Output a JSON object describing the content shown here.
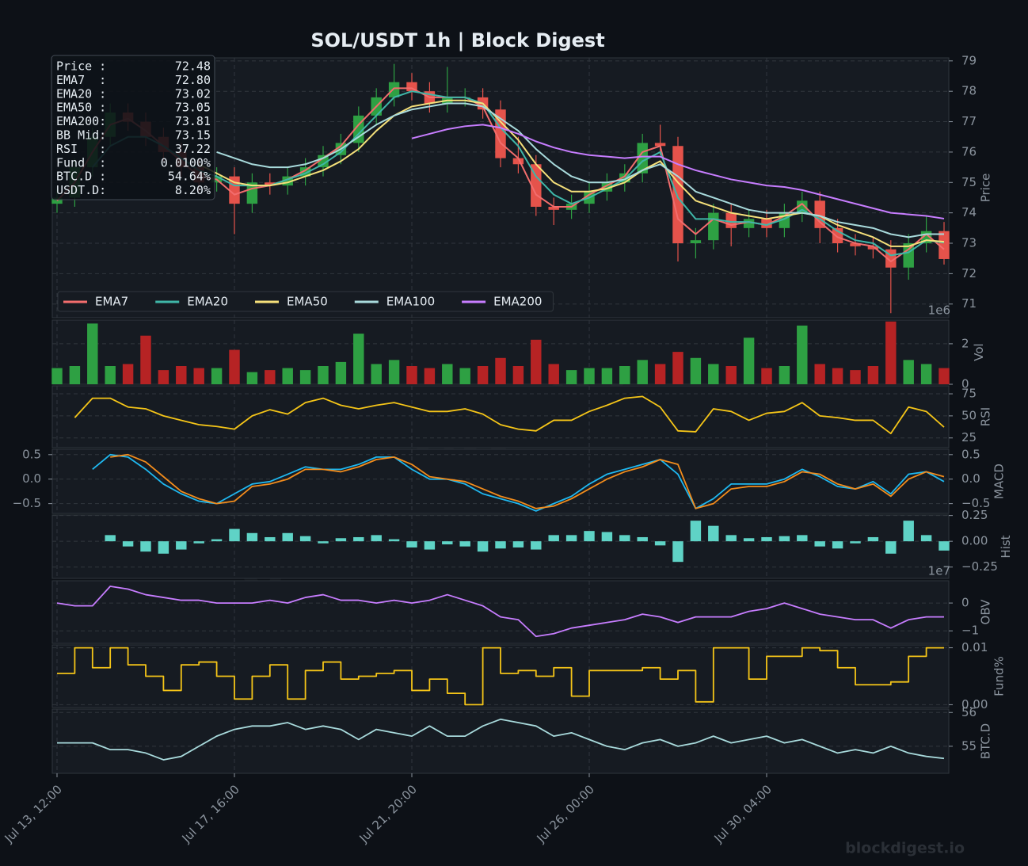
{
  "title": "SOL/USDT  1h  |  Block Digest",
  "watermark": "blockdigest.io",
  "footer": "blockdigest.io",
  "info_box": {
    "rows": [
      [
        "Price :",
        "72.48"
      ],
      [
        "EMA7  :",
        "72.80"
      ],
      [
        "EMA20 :",
        "73.02"
      ],
      [
        "EMA50 :",
        "73.05"
      ],
      [
        "EMA200:",
        "73.81"
      ],
      [
        "BB Mid:",
        "73.15"
      ],
      [
        "RSI   :",
        "37.22"
      ],
      [
        "Fund  :",
        "0.0100%"
      ],
      [
        "BTC.D :",
        "54.64%"
      ],
      [
        "USDT.D:",
        "8.20%"
      ]
    ]
  },
  "chart_data": [
    {
      "type": "candlestick",
      "ylabel": "Price",
      "ylim": [
        70.55,
        79.1
      ],
      "yticks": [
        71,
        72,
        73,
        74,
        75,
        76,
        77,
        78,
        79
      ],
      "grid": true,
      "legend": "lower left",
      "up_color": "#2ea043",
      "down_color": "#e5534b",
      "open": [
        74.3,
        74.5,
        75.5,
        76.5,
        77.3,
        77.0,
        76.5,
        76.0,
        75.5,
        75.0,
        75.2,
        74.3,
        75.0,
        74.9,
        75.2,
        75.5,
        75.9,
        76.3,
        77.2,
        77.8,
        78.3,
        78.0,
        77.6,
        77.8,
        77.8,
        77.4,
        75.8,
        75.6,
        74.2,
        74.1,
        74.3,
        74.7,
        75.0,
        75.3,
        76.3,
        76.2,
        73.0,
        73.1,
        74.0,
        73.5,
        73.8,
        73.5,
        74.0,
        74.4,
        73.5,
        73.0,
        72.9,
        72.8,
        72.2,
        73.0,
        73.4
      ],
      "high": [
        74.8,
        75.8,
        76.8,
        77.6,
        77.6,
        77.3,
        76.8,
        76.3,
        75.8,
        75.5,
        75.5,
        75.3,
        75.3,
        75.5,
        75.8,
        76.2,
        76.6,
        77.5,
        78.1,
        78.9,
        78.6,
        78.3,
        78.8,
        78.1,
        78.1,
        77.7,
        76.5,
        75.9,
        74.5,
        74.6,
        75.0,
        75.3,
        75.6,
        76.6,
        76.9,
        76.5,
        73.5,
        74.3,
        74.3,
        74.1,
        74.1,
        74.3,
        74.7,
        74.7,
        73.8,
        73.3,
        73.2,
        73.1,
        73.3,
        73.9,
        73.7
      ],
      "low": [
        74.0,
        74.2,
        75.2,
        76.2,
        76.7,
        76.2,
        75.7,
        75.2,
        74.7,
        74.7,
        73.3,
        74.0,
        74.6,
        74.6,
        74.9,
        75.2,
        75.6,
        76.0,
        76.9,
        77.5,
        77.7,
        77.3,
        77.3,
        77.5,
        77.1,
        75.5,
        75.3,
        73.9,
        73.6,
        73.8,
        74.0,
        74.4,
        74.7,
        75.0,
        75.9,
        72.4,
        72.5,
        72.8,
        72.9,
        73.2,
        73.2,
        73.2,
        73.7,
        73.0,
        72.7,
        72.6,
        72.5,
        70.7,
        71.8,
        72.7,
        72.3
      ],
      "close": [
        74.5,
        75.5,
        76.5,
        77.3,
        77.0,
        76.5,
        76.0,
        75.5,
        75.0,
        75.2,
        74.3,
        75.0,
        74.9,
        75.2,
        75.5,
        75.9,
        76.3,
        77.2,
        77.8,
        78.3,
        78.0,
        77.6,
        77.8,
        77.8,
        77.4,
        75.8,
        75.6,
        74.2,
        74.1,
        74.3,
        74.7,
        75.0,
        75.3,
        76.3,
        76.2,
        73.0,
        73.1,
        74.0,
        73.5,
        73.8,
        73.5,
        74.0,
        74.4,
        73.5,
        73.0,
        72.9,
        72.8,
        72.2,
        73.0,
        73.4,
        72.48
      ],
      "series": [
        {
          "name": "EMA7",
          "color": "#f26d6d",
          "values": [
            74.4,
            75.0,
            76.0,
            76.9,
            77.1,
            76.7,
            76.2,
            75.7,
            75.2,
            75.1,
            74.6,
            74.8,
            74.9,
            75.1,
            75.4,
            75.8,
            76.2,
            76.9,
            77.5,
            78.1,
            78.1,
            77.8,
            77.8,
            77.8,
            77.5,
            76.3,
            75.8,
            74.6,
            74.2,
            74.2,
            74.6,
            74.9,
            75.2,
            76.0,
            76.2,
            73.8,
            73.3,
            73.8,
            73.6,
            73.7,
            73.6,
            73.9,
            74.3,
            73.7,
            73.2,
            73.0,
            72.9,
            72.4,
            72.8,
            73.3,
            72.8
          ]
        },
        {
          "name": "EMA20",
          "color": "#3fb6a8",
          "values": [
            null,
            null,
            75.5,
            76.2,
            76.5,
            76.5,
            76.2,
            75.8,
            75.4,
            75.2,
            74.9,
            74.9,
            74.9,
            75.1,
            75.3,
            75.6,
            76.0,
            76.6,
            77.2,
            77.8,
            78.0,
            77.9,
            77.8,
            77.8,
            77.6,
            76.8,
            76.2,
            75.2,
            74.6,
            74.3,
            74.5,
            74.8,
            75.1,
            75.7,
            76.0,
            74.5,
            73.8,
            73.8,
            73.7,
            73.7,
            73.6,
            73.8,
            74.1,
            73.8,
            73.4,
            73.1,
            73.0,
            72.6,
            72.7,
            73.1,
            73.02
          ]
        },
        {
          "name": "EMA50",
          "color": "#f5e07a",
          "values": [
            null,
            null,
            null,
            null,
            null,
            null,
            null,
            null,
            75.6,
            75.3,
            75.0,
            74.9,
            74.9,
            75.0,
            75.2,
            75.4,
            75.7,
            76.1,
            76.7,
            77.2,
            77.5,
            77.6,
            77.7,
            77.7,
            77.6,
            77.0,
            76.4,
            75.6,
            75.0,
            74.7,
            74.7,
            74.8,
            75.0,
            75.4,
            75.7,
            75.0,
            74.4,
            74.2,
            74.0,
            73.9,
            73.8,
            73.9,
            74.0,
            73.9,
            73.6,
            73.4,
            73.2,
            72.9,
            72.9,
            73.1,
            73.05
          ]
        },
        {
          "name": "EMA100",
          "color": "#a8dadc",
          "values": [
            null,
            null,
            null,
            null,
            null,
            null,
            null,
            null,
            null,
            76.0,
            75.8,
            75.6,
            75.5,
            75.5,
            75.6,
            75.8,
            76.1,
            76.5,
            76.9,
            77.2,
            77.4,
            77.5,
            77.6,
            77.6,
            77.5,
            77.1,
            76.7,
            76.1,
            75.6,
            75.2,
            75.0,
            75.0,
            75.1,
            75.4,
            75.6,
            75.2,
            74.7,
            74.5,
            74.3,
            74.1,
            74.0,
            74.0,
            74.0,
            73.9,
            73.7,
            73.6,
            73.5,
            73.3,
            73.2,
            73.3,
            73.3
          ]
        },
        {
          "name": "EMA200",
          "color": "#c77dff",
          "values": [
            null,
            null,
            null,
            null,
            null,
            null,
            null,
            null,
            null,
            null,
            null,
            null,
            null,
            null,
            null,
            null,
            null,
            null,
            null,
            null,
            76.45,
            76.6,
            76.75,
            76.85,
            76.9,
            76.8,
            76.6,
            76.35,
            76.15,
            76.0,
            75.9,
            75.85,
            75.8,
            75.85,
            75.85,
            75.6,
            75.4,
            75.25,
            75.1,
            75.0,
            74.9,
            74.85,
            74.75,
            74.6,
            74.45,
            74.3,
            74.15,
            74.0,
            73.95,
            73.9,
            73.81
          ]
        }
      ]
    },
    {
      "type": "bar",
      "ylabel": "Vol",
      "offset_label": "1e6",
      "ylim": [
        0,
        3.17
      ],
      "yticks": [
        0,
        2
      ],
      "grid": true,
      "up_color": "#2ea043",
      "down_color": "#b62324",
      "values": [
        0.8,
        0.9,
        3.0,
        0.9,
        1.0,
        2.4,
        0.7,
        0.9,
        0.8,
        0.8,
        1.7,
        0.6,
        0.7,
        0.8,
        0.7,
        0.9,
        1.1,
        2.5,
        1.0,
        1.2,
        0.9,
        0.8,
        1.0,
        0.8,
        0.9,
        1.3,
        0.9,
        2.2,
        1.0,
        0.7,
        0.8,
        0.8,
        0.9,
        1.2,
        1.0,
        1.6,
        1.3,
        1.0,
        0.9,
        2.3,
        0.8,
        0.9,
        2.9,
        1.0,
        0.8,
        0.7,
        0.9,
        3.1,
        1.2,
        1.0,
        0.8
      ]
    },
    {
      "type": "line",
      "ylabel": "RSI",
      "ylim": [
        14,
        84
      ],
      "yticks": [
        25,
        50,
        75
      ],
      "grid": true,
      "series": [
        {
          "color": "#f5c518",
          "values": [
            null,
            48,
            70,
            70,
            60,
            58,
            50,
            45,
            40,
            38,
            35,
            50,
            57,
            52,
            65,
            70,
            62,
            58,
            62,
            65,
            60,
            55,
            55,
            58,
            52,
            40,
            35,
            33,
            45,
            45,
            55,
            62,
            70,
            72,
            60,
            33,
            32,
            58,
            55,
            45,
            53,
            55,
            65,
            50,
            48,
            45,
            45,
            30,
            60,
            55,
            37.22
          ]
        }
      ]
    },
    {
      "type": "line",
      "ylabel": "MACD",
      "ylim": [
        -0.7,
        0.61
      ],
      "left_ticks": true,
      "grid": true,
      "yticks": [
        {
          "value": -0.5,
          "label": "−0.5"
        },
        {
          "value": 0,
          "label": "0.0"
        },
        0.5
      ],
      "series": [
        {
          "color": "#1fb8f0",
          "values": [
            null,
            null,
            0.2,
            0.5,
            0.45,
            0.2,
            -0.1,
            -0.3,
            -0.45,
            -0.5,
            -0.3,
            -0.1,
            -0.05,
            0.1,
            0.25,
            0.2,
            0.2,
            0.3,
            0.45,
            0.45,
            0.2,
            0.0,
            0.0,
            -0.1,
            -0.3,
            -0.4,
            -0.5,
            -0.65,
            -0.5,
            -0.35,
            -0.1,
            0.1,
            0.2,
            0.3,
            0.4,
            0.1,
            -0.6,
            -0.4,
            -0.1,
            -0.1,
            -0.1,
            0.0,
            0.2,
            0.05,
            -0.15,
            -0.2,
            -0.05,
            -0.3,
            0.1,
            0.15,
            -0.05
          ]
        },
        {
          "color": "#f28c1c",
          "values": [
            null,
            null,
            null,
            0.45,
            0.5,
            0.35,
            0.05,
            -0.25,
            -0.4,
            -0.5,
            -0.45,
            -0.15,
            -0.1,
            0.0,
            0.2,
            0.2,
            0.15,
            0.25,
            0.4,
            0.45,
            0.3,
            0.05,
            0.0,
            -0.05,
            -0.2,
            -0.35,
            -0.45,
            -0.6,
            -0.55,
            -0.4,
            -0.2,
            0.0,
            0.15,
            0.25,
            0.4,
            0.3,
            -0.6,
            -0.5,
            -0.2,
            -0.15,
            -0.15,
            -0.05,
            0.15,
            0.1,
            -0.1,
            -0.2,
            -0.1,
            -0.35,
            0.0,
            0.15,
            0.05
          ]
        }
      ]
    },
    {
      "type": "bar",
      "ylabel": "Hist",
      "ylim": [
        -0.36,
        0.255
      ],
      "grid": true,
      "color": "#5fd3c6",
      "yticks": [
        {
          "value": -0.25,
          "label": "−0.25"
        },
        {
          "value": 0,
          "label": "0.00"
        },
        0.25
      ],
      "values": [
        null,
        null,
        null,
        0.06,
        -0.05,
        -0.1,
        -0.12,
        -0.08,
        -0.02,
        0.02,
        0.12,
        0.08,
        0.04,
        0.08,
        0.05,
        -0.02,
        0.03,
        0.04,
        0.06,
        0.02,
        -0.06,
        -0.08,
        -0.03,
        -0.05,
        -0.1,
        -0.07,
        -0.06,
        -0.08,
        0.06,
        0.06,
        0.1,
        0.09,
        0.06,
        0.04,
        -0.04,
        -0.2,
        0.2,
        0.15,
        0.06,
        0.03,
        0.04,
        0.05,
        0.06,
        -0.05,
        -0.07,
        -0.02,
        0.04,
        -0.12,
        0.2,
        0.06,
        -0.09
      ]
    },
    {
      "type": "line",
      "ylabel": "OBV",
      "offset_label": "1e7",
      "ylim": [
        -1.45,
        0.8
      ],
      "grid": true,
      "yticks": [
        {
          "value": -1,
          "label": "−1"
        },
        0
      ],
      "series": [
        {
          "color": "#c77dff",
          "values": [
            0.0,
            -0.1,
            -0.1,
            0.6,
            0.5,
            0.3,
            0.2,
            0.1,
            0.1,
            0.0,
            0.0,
            0.0,
            0.1,
            0.0,
            0.2,
            0.3,
            0.1,
            0.1,
            0.0,
            0.1,
            0.0,
            0.1,
            0.3,
            0.1,
            -0.1,
            -0.5,
            -0.6,
            -1.2,
            -1.1,
            -0.9,
            -0.8,
            -0.7,
            -0.6,
            -0.4,
            -0.5,
            -0.7,
            -0.5,
            -0.5,
            -0.5,
            -0.3,
            -0.2,
            0.0,
            -0.2,
            -0.4,
            -0.5,
            -0.6,
            -0.6,
            -0.9,
            -0.6,
            -0.5,
            -0.5
          ]
        }
      ]
    },
    {
      "type": "step",
      "ylabel": "Fund%",
      "ylim": [
        -0.0005,
        0.0105
      ],
      "grid": true,
      "yticks": [
        {
          "value": 0,
          "label": "0.00"
        },
        0.01
      ],
      "series": [
        {
          "color": "#f5c518",
          "values": [
            0.0055,
            0.01,
            0.0065,
            0.01,
            0.007,
            0.005,
            0.0025,
            0.007,
            0.0075,
            0.005,
            0.001,
            0.005,
            0.007,
            0.001,
            0.006,
            0.0075,
            0.0045,
            0.005,
            0.0055,
            0.006,
            0.0025,
            0.0045,
            0.002,
            0,
            0.01,
            0.0055,
            0.006,
            0.005,
            0.0065,
            0.0015,
            0.006,
            0.006,
            0.006,
            0.0065,
            0.0045,
            0.006,
            0.0005,
            0.01,
            0.01,
            0.0045,
            0.0085,
            0.0085,
            0.01,
            0.0095,
            0.0065,
            0.0035,
            0.0035,
            0.004,
            0.0085,
            0.01,
            0.01
          ]
        }
      ]
    },
    {
      "type": "line",
      "ylabel": "BTC.D",
      "ylim": [
        54.2,
        56.1
      ],
      "yticks": [
        55,
        56
      ],
      "grid": true,
      "x": [
        "Jul 13, 12:00",
        null,
        null,
        null,
        null,
        null,
        null,
        null,
        null,
        null,
        "Jul 17, 16:00",
        null,
        null,
        null,
        null,
        null,
        null,
        null,
        null,
        null,
        "Jul 21, 20:00",
        null,
        null,
        null,
        null,
        null,
        null,
        null,
        null,
        null,
        "Jul 26, 00:00",
        null,
        null,
        null,
        null,
        null,
        null,
        null,
        null,
        null,
        "Jul 30, 04:00",
        null,
        null,
        null,
        null,
        null,
        null,
        null,
        null,
        null,
        null
      ],
      "series": [
        {
          "color": "#a8dadc",
          "values": [
            55.1,
            55.1,
            55.1,
            54.9,
            54.9,
            54.8,
            54.6,
            54.7,
            55.0,
            55.3,
            55.5,
            55.6,
            55.6,
            55.7,
            55.5,
            55.6,
            55.5,
            55.2,
            55.5,
            55.4,
            55.3,
            55.6,
            55.3,
            55.3,
            55.6,
            55.8,
            55.7,
            55.6,
            55.3,
            55.4,
            55.2,
            55.0,
            54.9,
            55.1,
            55.2,
            55.0,
            55.1,
            55.3,
            55.1,
            55.2,
            55.3,
            55.1,
            55.2,
            55.0,
            54.8,
            54.9,
            54.8,
            55.0,
            54.8,
            54.7,
            54.64
          ]
        }
      ]
    }
  ]
}
